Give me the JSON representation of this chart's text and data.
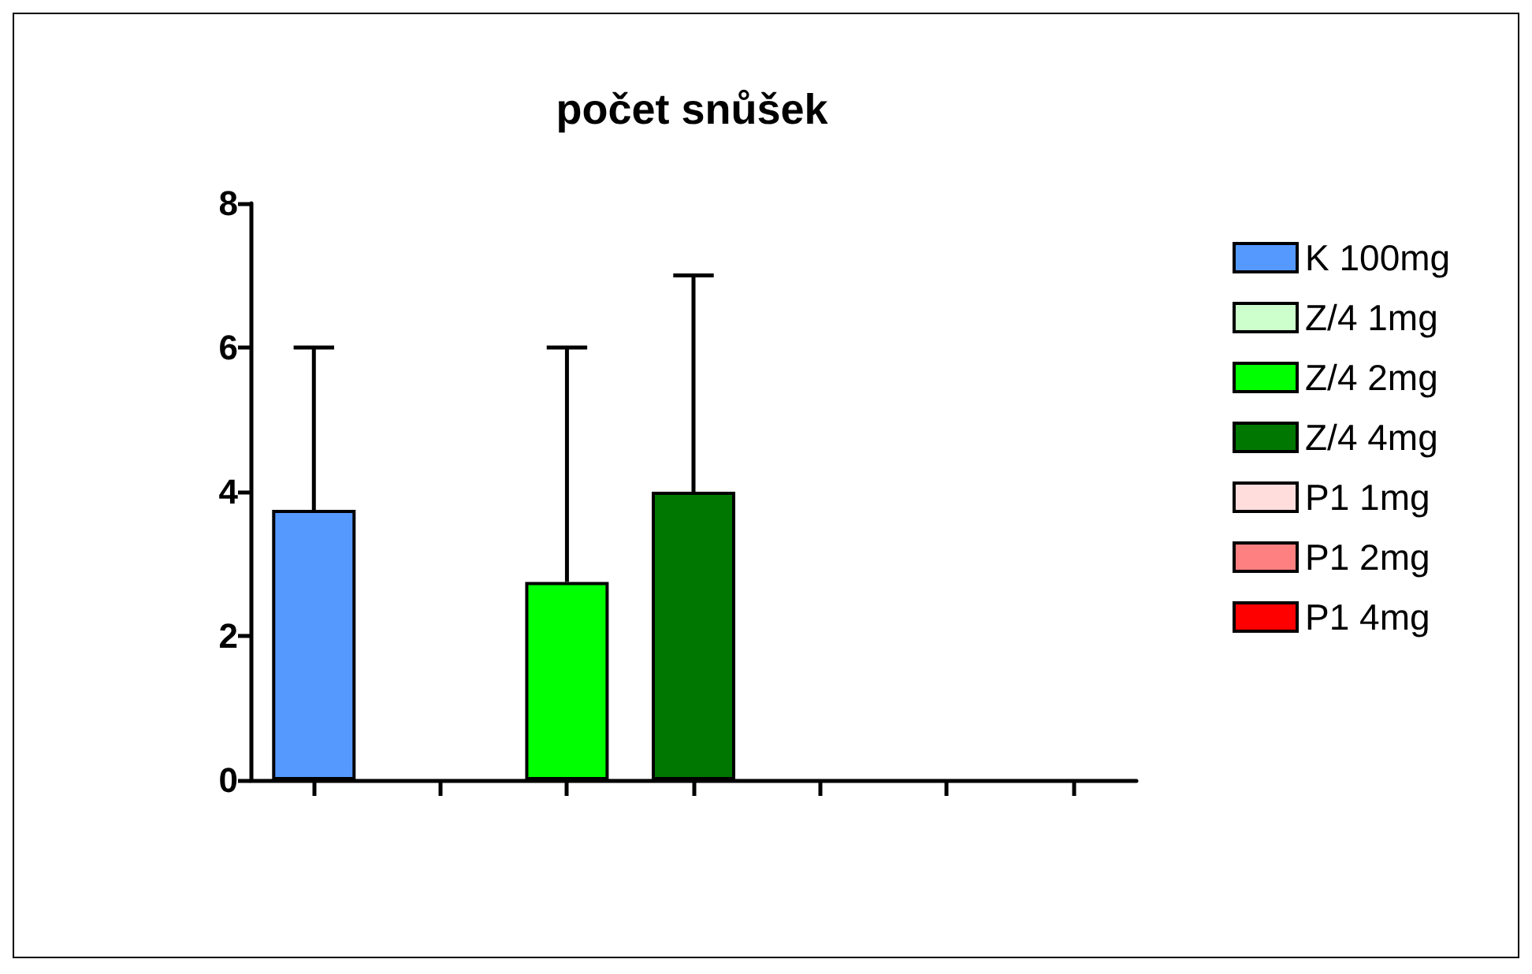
{
  "chart_data": {
    "type": "bar",
    "title": "počet snůšek",
    "categories": [
      null,
      null,
      null,
      null,
      null,
      null,
      null
    ],
    "ylim": [
      0,
      8
    ],
    "yticks": [
      0,
      2,
      4,
      6,
      8
    ],
    "grid": false,
    "legend": "right",
    "series": [
      {
        "name": "K 100mg",
        "color": "#5599ff",
        "values": [
          3.75,
          null,
          null,
          null,
          null,
          null,
          null
        ],
        "errors": [
          [
            3.75,
            6
          ],
          null,
          null,
          null,
          null,
          null,
          null
        ]
      },
      {
        "name": "Z/4 1mg",
        "color": "#ccffcc",
        "values": [
          null,
          null,
          null,
          null,
          null,
          null,
          null
        ]
      },
      {
        "name": "Z/4 2mg",
        "color": "#00ff00",
        "values": [
          null,
          null,
          2.75,
          null,
          null,
          null,
          null
        ],
        "errors": [
          null,
          null,
          [
            2.75,
            6
          ],
          null,
          null,
          null,
          null
        ]
      },
      {
        "name": "Z/4 4mg",
        "color": "#007700",
        "values": [
          null,
          null,
          null,
          4,
          null,
          null,
          null
        ],
        "errors": [
          null,
          null,
          null,
          [
            4,
            7
          ],
          null,
          null,
          null
        ]
      },
      {
        "name": "P1 1mg",
        "color": "#ffdddd",
        "values": [
          null,
          null,
          null,
          null,
          null,
          null,
          null
        ]
      },
      {
        "name": "P1 2mg",
        "color": "#ff8080",
        "values": [
          null,
          null,
          null,
          null,
          null,
          null,
          null
        ]
      },
      {
        "name": "P1 4mg",
        "color": "#ff0000",
        "values": [
          null,
          null,
          null,
          null,
          null,
          null,
          null
        ]
      }
    ]
  }
}
